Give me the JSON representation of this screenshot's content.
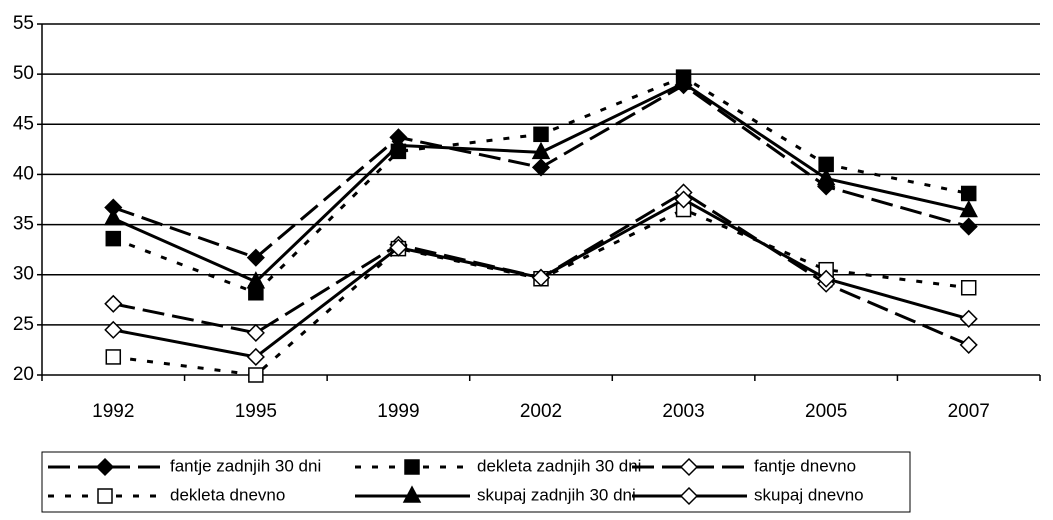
{
  "chart_data": {
    "type": "line",
    "categories": [
      "1992",
      "1995",
      "1999",
      "2002",
      "2003",
      "2005",
      "2007"
    ],
    "series": [
      {
        "name": "fantje zadnjih 30 dni",
        "color": "#000000",
        "dash": "long",
        "marker": "diamond",
        "filled": true,
        "values": [
          36.7,
          31.7,
          43.7,
          40.7,
          48.9,
          38.8,
          34.8
        ]
      },
      {
        "name": "dekleta zadnjih 30 dni",
        "color": "#000000",
        "dash": "short",
        "marker": "square",
        "filled": true,
        "values": [
          33.6,
          28.2,
          42.3,
          44.0,
          49.7,
          41.0,
          38.1
        ]
      },
      {
        "name": "fantje dnevno",
        "color": "#000000",
        "dash": "long",
        "marker": "diamond",
        "filled": false,
        "values": [
          27.1,
          24.2,
          33.0,
          29.7,
          38.2,
          29.1,
          23.0
        ]
      },
      {
        "name": "dekleta dnevno",
        "color": "#000000",
        "dash": "short",
        "marker": "square",
        "filled": false,
        "values": [
          21.8,
          20.0,
          32.6,
          29.6,
          36.5,
          30.5,
          28.7
        ]
      },
      {
        "name": "skupaj zadnjih 30 dni",
        "color": "#000000",
        "dash": "solid",
        "marker": "triangle",
        "filled": true,
        "values": [
          35.6,
          29.3,
          42.9,
          42.2,
          49.1,
          39.6,
          36.4
        ]
      },
      {
        "name": "skupaj dnevno",
        "color": "#000000",
        "dash": "solid",
        "marker": "diamond",
        "filled": false,
        "values": [
          24.5,
          21.8,
          32.7,
          29.7,
          37.5,
          29.6,
          25.6
        ]
      }
    ],
    "ylim": [
      20,
      55
    ],
    "yticks": [
      20,
      25,
      30,
      35,
      40,
      45,
      50,
      55
    ],
    "grid": true,
    "legend": "bottom"
  }
}
